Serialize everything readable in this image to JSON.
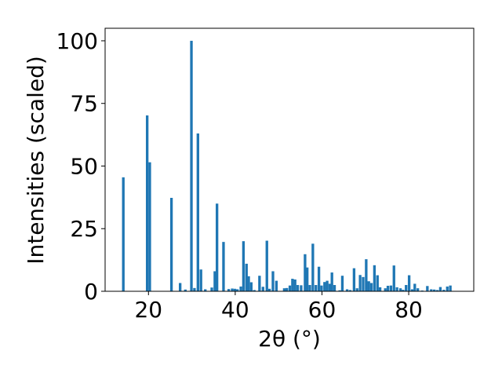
{
  "chart_data": {
    "type": "bar",
    "xlabel": "2θ (°)",
    "ylabel": "Intensities (scaled)",
    "xlim": [
      10,
      95
    ],
    "ylim": [
      0,
      105
    ],
    "grid": false,
    "bar_color": "#1f77b4",
    "x_ticks": [
      20,
      40,
      60,
      80
    ],
    "y_ticks": [
      0,
      25,
      50,
      75,
      100
    ],
    "x": [
      14.2,
      19.7,
      20.3,
      25.3,
      27.3,
      28.5,
      29.9,
      30.6,
      31.4,
      32.1,
      33.1,
      34.6,
      35.3,
      35.8,
      37.3,
      38.5,
      39.3,
      39.9,
      40.5,
      41.3,
      41.9,
      42.6,
      43.1,
      43.7,
      44.4,
      45.6,
      46.4,
      47.3,
      47.9,
      48.7,
      49.5,
      51.3,
      51.9,
      52.6,
      53.2,
      53.8,
      54.4,
      55.2,
      56.1,
      56.6,
      57.2,
      57.9,
      58.6,
      59.3,
      59.9,
      60.6,
      61.2,
      61.8,
      62.3,
      62.9,
      64.1,
      64.7,
      65.8,
      66.5,
      67.4,
      68.1,
      68.8,
      69.5,
      70.2,
      70.8,
      71.4,
      72.1,
      72.8,
      73.4,
      74.6,
      75.2,
      75.9,
      76.6,
      77.3,
      78.1,
      78.7,
      79.4,
      80.1,
      80.8,
      81.4,
      82.1,
      83.1,
      84.3,
      85.2,
      85.9,
      86.6,
      87.3,
      88.1,
      88.9,
      89.6
    ],
    "values": [
      45.5,
      70.2,
      51.5,
      37.3,
      3.3,
      0.7,
      100.0,
      1.3,
      63.0,
      8.7,
      0.8,
      1.5,
      8.0,
      35.0,
      19.7,
      0.9,
      1.1,
      1.0,
      0.8,
      1.9,
      20.0,
      11.0,
      6.0,
      3.6,
      0.5,
      6.2,
      1.8,
      20.2,
      1.0,
      8.0,
      4.2,
      1.2,
      1.3,
      2.3,
      5.0,
      4.7,
      2.5,
      2.4,
      14.8,
      9.5,
      2.5,
      19.0,
      2.5,
      9.8,
      2.3,
      3.7,
      4.2,
      3.0,
      7.5,
      2.5,
      0.4,
      6.2,
      0.8,
      0.5,
      9.2,
      1.2,
      6.5,
      5.7,
      12.8,
      4.0,
      3.3,
      10.4,
      6.4,
      1.6,
      1.2,
      2.2,
      2.3,
      10.3,
      1.6,
      1.2,
      0.6,
      2.5,
      6.4,
      0.8,
      3.0,
      1.2,
      0.3,
      2.1,
      0.8,
      0.7,
      0.5,
      1.7,
      0.6,
      1.9,
      2.3
    ]
  }
}
